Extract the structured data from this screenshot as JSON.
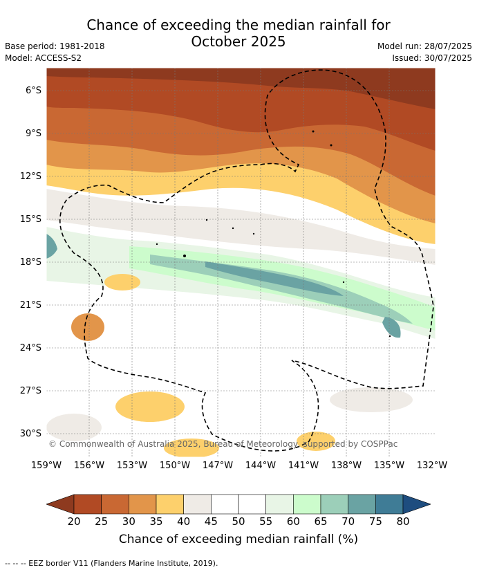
{
  "header": {
    "title_line1": "Chance of exceeding the median rainfall for",
    "title_line2": "October 2025",
    "base_period": "Base period: 1981-2018",
    "model": "Model: ACCESS-S2",
    "model_run": "Model run: 28/07/2025",
    "issued": "Issued: 30/07/2025"
  },
  "map": {
    "lat_ticks": [
      "6°S",
      "9°S",
      "12°S",
      "15°S",
      "18°S",
      "21°S",
      "24°S",
      "27°S",
      "30°S"
    ],
    "lon_ticks": [
      "159°W",
      "156°W",
      "153°W",
      "150°W",
      "147°W",
      "144°W",
      "141°W",
      "138°W",
      "135°W",
      "132°W"
    ],
    "copyright": "© Commonwealth of Australia 2025, Bureau of Meteorology, supported by COSPPac"
  },
  "colorbar": {
    "ticks": [
      "20",
      "25",
      "30",
      "35",
      "40",
      "45",
      "50",
      "55",
      "60",
      "65",
      "70",
      "75",
      "80"
    ],
    "colors": [
      "#8e3a1f",
      "#b14a24",
      "#c96833",
      "#e2954a",
      "#fdd06c",
      "#efebe6",
      "#ffffff",
      "#ffffff",
      "#e8f5e6",
      "#ccfccc",
      "#9ccfb9",
      "#6aa3a3",
      "#3f7c96",
      "#1e4d7f"
    ],
    "label": "Chance of exceeding median rainfall (%)"
  },
  "footer": {
    "legend": "--  --  -- EEZ border V11 (Flanders Marine Institute, 2019)."
  }
}
